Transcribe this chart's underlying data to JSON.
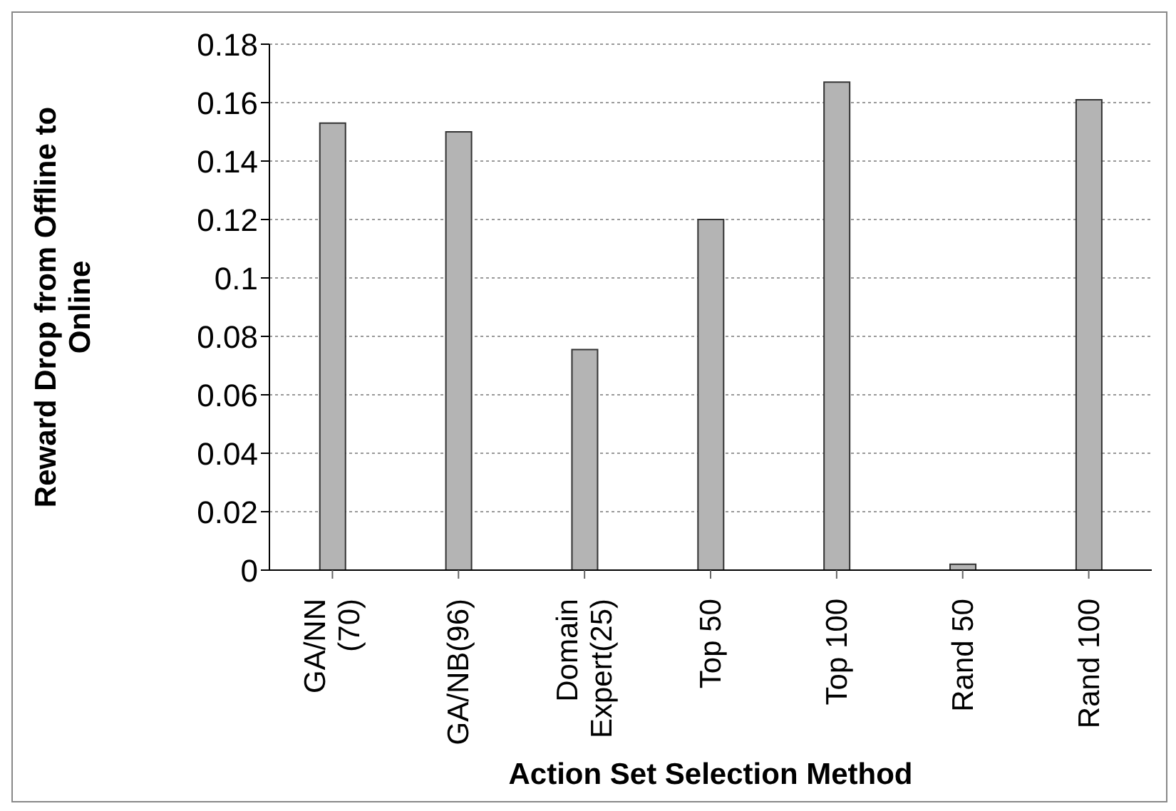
{
  "chart_data": {
    "type": "bar",
    "xlabel": "Action Set Selection Method",
    "ylabel": "Reward Drop from Offline to Online",
    "categories": [
      "GA/NN (70)",
      "GA/NB(96)",
      "Domain Expert(25)",
      "Top 50",
      "Top 100",
      "Rand 50",
      "Rand 100"
    ],
    "values": [
      0.153,
      0.15,
      0.0755,
      0.12,
      0.167,
      0.002,
      0.161
    ],
    "color": "#b4b4b4",
    "ylim": [
      0,
      0.18
    ],
    "yticks": [
      0,
      0.02,
      0.04,
      0.06,
      0.08,
      0.1,
      0.12,
      0.14,
      0.16,
      0.18
    ],
    "grid": "y",
    "legend": false
  }
}
